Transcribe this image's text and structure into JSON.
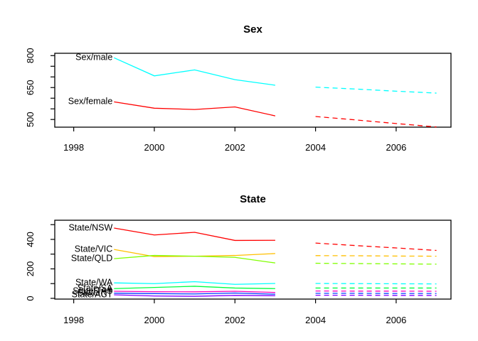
{
  "figure": {
    "background": "#FFFFFF",
    "text_color": "#000000",
    "box_color": "#000000"
  },
  "chart_data": [
    {
      "type": "line",
      "title": "Sex",
      "legend": "inline-labels",
      "grid": false,
      "x_obs": [
        1999,
        2000,
        2001,
        2002,
        2003
      ],
      "x_forecast": [
        2004,
        2005,
        2006,
        2007
      ],
      "xlim": [
        1997.53,
        2007.36
      ],
      "ylim": [
        464,
        811
      ],
      "xticks": [
        1998,
        2000,
        2002,
        2004,
        2006
      ],
      "yticks_all": [
        500,
        550,
        600,
        650,
        700,
        750,
        800
      ],
      "yticks_labeled": [
        500,
        650,
        800
      ],
      "series": [
        {
          "name": "Sex/male",
          "color": "#00FFFF",
          "observed": [
            790,
            705,
            733,
            687,
            661
          ],
          "forecast": [
            652,
            643,
            633,
            624
          ]
        },
        {
          "name": "Sex/female",
          "color": "#FF0000",
          "observed": [
            583,
            553,
            547,
            559,
            517
          ],
          "forecast": [
            514,
            498,
            481,
            465
          ]
        }
      ]
    },
    {
      "type": "line",
      "title": "State",
      "legend": "inline-labels",
      "grid": false,
      "x_obs": [
        1999,
        2000,
        2001,
        2002,
        2003
      ],
      "x_forecast": [
        2004,
        2005,
        2006,
        2007
      ],
      "xlim": [
        1997.53,
        2007.36
      ],
      "ylim": [
        -5,
        530
      ],
      "xticks": [
        1998,
        2000,
        2002,
        2004,
        2006
      ],
      "yticks_all": [
        0,
        100,
        200,
        300,
        400,
        500
      ],
      "yticks_labeled": [
        0,
        200,
        400
      ],
      "series": [
        {
          "name": "State/NSW",
          "color": "#FF0000",
          "observed": [
            477,
            430,
            448,
            393,
            394
          ],
          "forecast": [
            375,
            358,
            342,
            325
          ]
        },
        {
          "name": "State/VIC",
          "color": "#FFBF00",
          "observed": [
            332,
            283,
            286,
            291,
            304
          ],
          "forecast": [
            290,
            289,
            287,
            286
          ]
        },
        {
          "name": "State/QLD",
          "color": "#80FF00",
          "observed": [
            269,
            291,
            286,
            278,
            240
          ],
          "forecast": [
            238,
            236,
            234,
            232
          ]
        },
        {
          "name": "State/SA",
          "color": "#00FF40",
          "observed": [
            66,
            74,
            82,
            70,
            66
          ],
          "forecast": [
            70,
            70,
            70,
            70
          ]
        },
        {
          "name": "State/WA",
          "color": "#00FFFF",
          "observed": [
            105,
            100,
            113,
            95,
            101
          ],
          "forecast": [
            101,
            100,
            99,
            98
          ]
        },
        {
          "name": "State/NT",
          "color": "#0040FF",
          "observed": [
            35,
            32,
            30,
            36,
            28
          ],
          "forecast": [
            34,
            34,
            33,
            33
          ]
        },
        {
          "name": "State/ACT",
          "color": "#8000FF",
          "observed": [
            24,
            16,
            14,
            20,
            18
          ],
          "forecast": [
            21,
            21,
            20,
            20
          ]
        },
        {
          "name": "State/TAS",
          "color": "#FF00BF",
          "observed": [
            48,
            45,
            44,
            48,
            40
          ],
          "forecast": [
            50,
            49,
            49,
            48
          ]
        }
      ]
    }
  ]
}
